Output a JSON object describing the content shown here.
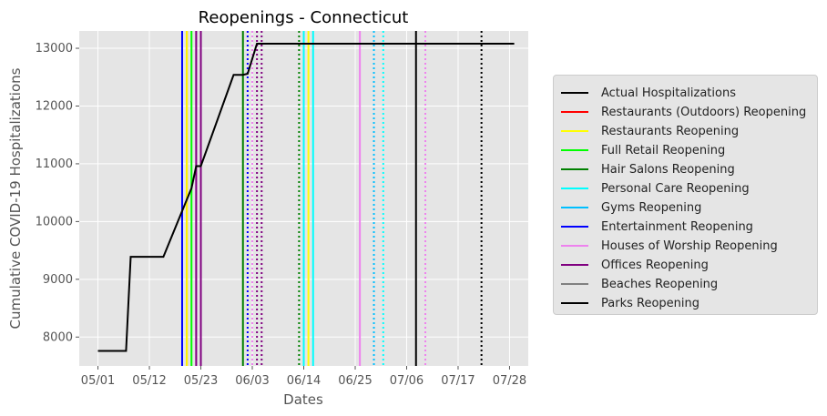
{
  "chart_data": {
    "type": "line",
    "title": "Reopenings - Connecticut",
    "xlabel": "Dates",
    "ylabel": "Cumulative COVID-19 Hospitalizations",
    "ylim": [
      7500,
      13300
    ],
    "xlim": [
      "2020-04-27",
      "2020-08-01"
    ],
    "x_tick_labels": [
      "05/01",
      "05/12",
      "05/23",
      "06/03",
      "06/14",
      "06/25",
      "07/06",
      "07/17",
      "07/28"
    ],
    "x_tick_dates": [
      "2020-05-01",
      "2020-05-12",
      "2020-05-23",
      "2020-06-03",
      "2020-06-14",
      "2020-06-25",
      "2020-07-06",
      "2020-07-17",
      "2020-07-28"
    ],
    "y_ticks": [
      8000,
      9000,
      10000,
      11000,
      12000,
      13000
    ],
    "grid": true,
    "legend_position": "right, outside",
    "series": [
      {
        "name": "Actual Hospitalizations",
        "color": "#000000",
        "points": [
          [
            "2020-05-01",
            7760
          ],
          [
            "2020-05-07",
            7760
          ],
          [
            "2020-05-08",
            9390
          ],
          [
            "2020-05-15",
            9390
          ],
          [
            "2020-05-21",
            10580
          ],
          [
            "2020-05-22",
            10960
          ],
          [
            "2020-05-23",
            10960
          ],
          [
            "2020-05-30",
            12540
          ],
          [
            "2020-06-01",
            12540
          ],
          [
            "2020-06-02",
            12560
          ],
          [
            "2020-06-04",
            13080
          ],
          [
            "2020-07-29",
            13080
          ]
        ]
      }
    ],
    "vlines": [
      {
        "date": "2020-05-19",
        "color": "#0000ff",
        "style": "solid"
      },
      {
        "date": "2020-05-20",
        "color": "#ff0000",
        "style": "solid"
      },
      {
        "date": "2020-05-20",
        "color": "#ffff00",
        "style": "solid"
      },
      {
        "date": "2020-05-21",
        "color": "#00ff00",
        "style": "solid"
      },
      {
        "date": "2020-05-22",
        "color": "#ee82ee",
        "style": "solid"
      },
      {
        "date": "2020-05-22",
        "color": "#800080",
        "style": "solid"
      },
      {
        "date": "2020-05-23",
        "color": "#800080",
        "style": "solid"
      },
      {
        "date": "2020-06-01",
        "color": "#008000",
        "style": "solid"
      },
      {
        "date": "2020-06-02",
        "color": "#0000ff",
        "style": "dotted"
      },
      {
        "date": "2020-06-03",
        "color": "#ee82ee",
        "style": "dotted"
      },
      {
        "date": "2020-06-04",
        "color": "#800080",
        "style": "dotted"
      },
      {
        "date": "2020-06-05",
        "color": "#800080",
        "style": "dotted"
      },
      {
        "date": "2020-06-13",
        "color": "#008000",
        "style": "dotted"
      },
      {
        "date": "2020-06-14",
        "color": "#00ffff",
        "style": "solid"
      },
      {
        "date": "2020-06-15",
        "color": "#ffff00",
        "style": "solid"
      },
      {
        "date": "2020-06-16",
        "color": "#00ffff",
        "style": "solid"
      },
      {
        "date": "2020-06-26",
        "color": "#ee82ee",
        "style": "solid"
      },
      {
        "date": "2020-06-29",
        "color": "#00bfff",
        "style": "dotted"
      },
      {
        "date": "2020-07-01",
        "color": "#00ffff",
        "style": "dotted"
      },
      {
        "date": "2020-07-08",
        "color": "#000000",
        "style": "solid"
      },
      {
        "date": "2020-07-10",
        "color": "#ee82ee",
        "style": "dotted"
      },
      {
        "date": "2020-07-22",
        "color": "#000000",
        "style": "dotted"
      }
    ]
  },
  "legend": [
    {
      "label": "Actual Hospitalizations",
      "color": "#000000"
    },
    {
      "label": "Restaurants (Outdoors) Reopening",
      "color": "#ff0000"
    },
    {
      "label": "Restaurants Reopening",
      "color": "#ffff00"
    },
    {
      "label": "Full Retail Reopening",
      "color": "#00ff00"
    },
    {
      "label": "Hair Salons Reopening",
      "color": "#008000"
    },
    {
      "label": "Personal Care Reopening",
      "color": "#00ffff"
    },
    {
      "label": "Gyms Reopening",
      "color": "#00bfff"
    },
    {
      "label": "Entertainment Reopening",
      "color": "#0000ff"
    },
    {
      "label": "Houses of Worship Reopening",
      "color": "#ee82ee"
    },
    {
      "label": "Offices Reopening",
      "color": "#800080"
    },
    {
      "label": "Beaches Reopening",
      "color": "#808080"
    },
    {
      "label": "Parks Reopening",
      "color": "#000000"
    }
  ]
}
